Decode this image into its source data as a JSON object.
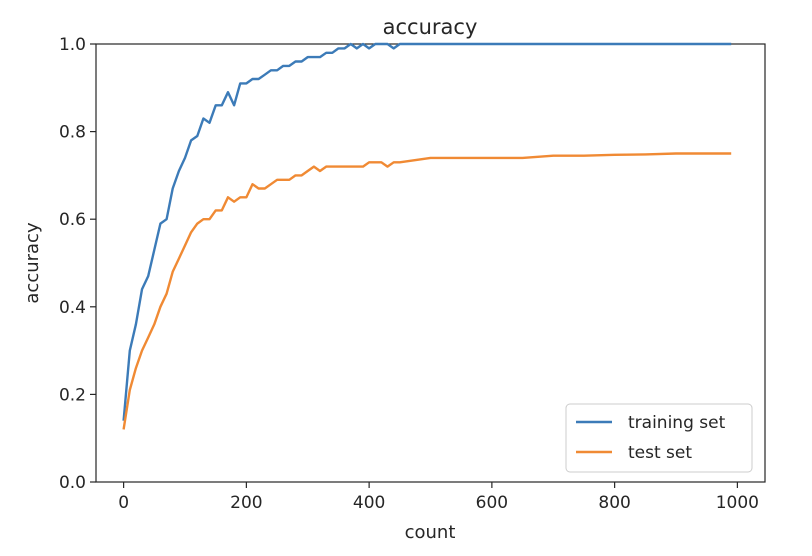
{
  "chart_data": {
    "type": "line",
    "title": "accuracy",
    "xlabel": "count",
    "ylabel": "accuracy",
    "xlim": [
      -45,
      1045
    ],
    "ylim": [
      0.0,
      1.0
    ],
    "xticks": [
      0,
      200,
      400,
      600,
      800,
      1000
    ],
    "xtick_labels": [
      "0",
      "200",
      "400",
      "600",
      "800",
      "1000"
    ],
    "yticks": [
      0.0,
      0.2,
      0.4,
      0.6,
      0.8,
      1.0
    ],
    "ytick_labels": [
      "0.0",
      "0.2",
      "0.4",
      "0.6",
      "0.8",
      "1.0"
    ],
    "grid": false,
    "legend_position": "lower-right",
    "series": [
      {
        "name": "training set",
        "color": "#3c7bb8",
        "x": [
          0,
          10,
          20,
          30,
          40,
          50,
          60,
          70,
          80,
          90,
          100,
          110,
          120,
          130,
          140,
          150,
          160,
          170,
          180,
          190,
          200,
          210,
          220,
          230,
          240,
          250,
          260,
          270,
          280,
          290,
          300,
          310,
          320,
          330,
          340,
          350,
          360,
          370,
          380,
          390,
          400,
          410,
          420,
          430,
          440,
          450,
          500,
          600,
          700,
          800,
          900,
          990
        ],
        "y": [
          0.14,
          0.3,
          0.36,
          0.44,
          0.47,
          0.53,
          0.59,
          0.6,
          0.67,
          0.71,
          0.74,
          0.78,
          0.79,
          0.83,
          0.82,
          0.86,
          0.86,
          0.89,
          0.86,
          0.91,
          0.91,
          0.92,
          0.92,
          0.93,
          0.94,
          0.94,
          0.95,
          0.95,
          0.96,
          0.96,
          0.97,
          0.97,
          0.97,
          0.98,
          0.98,
          0.99,
          0.99,
          1.0,
          0.99,
          1.0,
          0.99,
          1.0,
          1.0,
          1.0,
          0.99,
          1.0,
          1.0,
          1.0,
          1.0,
          1.0,
          1.0,
          1.0
        ]
      },
      {
        "name": "test set",
        "color": "#f08a34",
        "x": [
          0,
          10,
          20,
          30,
          40,
          50,
          60,
          70,
          80,
          90,
          100,
          110,
          120,
          130,
          140,
          150,
          160,
          170,
          180,
          190,
          200,
          210,
          220,
          230,
          240,
          250,
          260,
          270,
          280,
          290,
          300,
          310,
          320,
          330,
          340,
          350,
          360,
          370,
          380,
          390,
          400,
          410,
          420,
          430,
          440,
          450,
          500,
          550,
          600,
          650,
          700,
          750,
          800,
          850,
          900,
          950,
          990
        ],
        "y": [
          0.12,
          0.21,
          0.26,
          0.3,
          0.33,
          0.36,
          0.4,
          0.43,
          0.48,
          0.51,
          0.54,
          0.57,
          0.59,
          0.6,
          0.6,
          0.62,
          0.62,
          0.65,
          0.64,
          0.65,
          0.65,
          0.68,
          0.67,
          0.67,
          0.68,
          0.69,
          0.69,
          0.69,
          0.7,
          0.7,
          0.71,
          0.72,
          0.71,
          0.72,
          0.72,
          0.72,
          0.72,
          0.72,
          0.72,
          0.72,
          0.73,
          0.73,
          0.73,
          0.72,
          0.73,
          0.73,
          0.74,
          0.74,
          0.74,
          0.74,
          0.745,
          0.745,
          0.747,
          0.748,
          0.75,
          0.75,
          0.75
        ]
      }
    ]
  }
}
